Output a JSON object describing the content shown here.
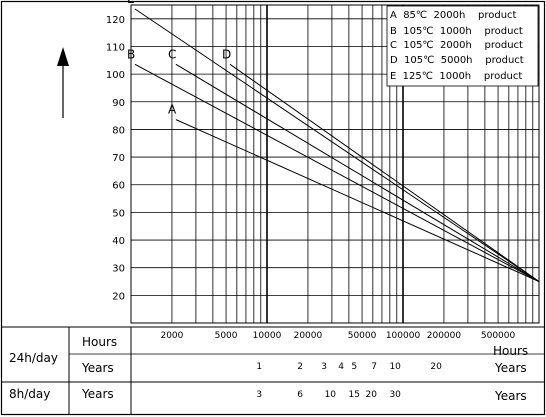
{
  "chart_data": {
    "type": "line",
    "x_scale": "log",
    "xlim": [
      1000,
      1000000
    ],
    "ylim": [
      10,
      125
    ],
    "y_ticks": [
      20,
      30,
      40,
      50,
      60,
      70,
      80,
      90,
      100,
      110,
      120
    ],
    "x_tick_labels": [
      {
        "x": 2000,
        "label": "2000"
      },
      {
        "x": 5000,
        "label": "5000"
      },
      {
        "x": 10000,
        "label": "10000"
      },
      {
        "x": 20000,
        "label": "20000"
      },
      {
        "x": 50000,
        "label": "50000"
      },
      {
        "x": 100000,
        "label": "100000"
      },
      {
        "x": 200000,
        "label": "200000"
      },
      {
        "x": 500000,
        "label": "500000"
      }
    ],
    "x_unit": "Hours",
    "grid": true,
    "legend_position": "top-right",
    "series": [
      {
        "name": "A",
        "legend": "A  85℃  2000h    product",
        "points": [
          [
            2000,
            85
          ],
          [
            1000000,
            25
          ]
        ]
      },
      {
        "name": "B",
        "legend": "B  105℃  1000h    product",
        "points": [
          [
            1000,
            105
          ],
          [
            1000000,
            25
          ]
        ]
      },
      {
        "name": "C",
        "legend": "C  105℃  2000h    product",
        "points": [
          [
            2000,
            105
          ],
          [
            1000000,
            25
          ]
        ]
      },
      {
        "name": "D",
        "legend": "D  105℃  5000h    product",
        "points": [
          [
            5000,
            105
          ],
          [
            1000000,
            25
          ]
        ]
      },
      {
        "name": "E",
        "legend": "E  125℃  1000h    product",
        "points": [
          [
            1000,
            125
          ],
          [
            1000000,
            25
          ]
        ]
      }
    ]
  },
  "table": {
    "hours_label": "Hours",
    "hours_unit": "Hours",
    "row24_label": "24h/day",
    "row8_label": "8h/day",
    "years_label": "Years",
    "years_unit": "Years",
    "years_24": [
      {
        "hours": 8760,
        "label": "1"
      },
      {
        "hours": 17520,
        "label": "2"
      },
      {
        "hours": 26280,
        "label": "3"
      },
      {
        "hours": 35040,
        "label": "4"
      },
      {
        "hours": 43800,
        "label": "5"
      },
      {
        "hours": 61320,
        "label": "7"
      },
      {
        "hours": 87600,
        "label": "10"
      },
      {
        "hours": 175200,
        "label": "20"
      }
    ],
    "years_8": [
      {
        "hours": 8760,
        "label": "3"
      },
      {
        "hours": 17520,
        "label": "6"
      },
      {
        "hours": 29200,
        "label": "10"
      },
      {
        "hours": 43800,
        "label": "15"
      },
      {
        "hours": 58400,
        "label": "20"
      },
      {
        "hours": 87600,
        "label": "30"
      }
    ]
  },
  "colors": {
    "ink": "#000000",
    "background": "#ffffff"
  },
  "icons": {
    "axis_arrow": "up-arrow-icon"
  }
}
